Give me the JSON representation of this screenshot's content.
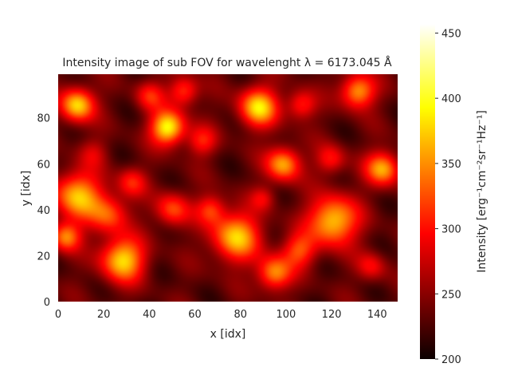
{
  "chart_data": {
    "type": "heatmap",
    "title": "Intensity image of sub FOV for wavelenght λ = 6173.045 Å",
    "xlabel": "x [idx]",
    "ylabel": "y [idx]",
    "xlim": [
      0,
      149
    ],
    "ylim": [
      0,
      99
    ],
    "x_ticks": [
      "0",
      "20",
      "40",
      "60",
      "80",
      "100",
      "120",
      "140"
    ],
    "x_tick_values": [
      0,
      20,
      40,
      60,
      80,
      100,
      120,
      140
    ],
    "y_ticks": [
      "0",
      "20",
      "40",
      "60",
      "80"
    ],
    "y_tick_values": [
      0,
      20,
      40,
      60,
      80
    ],
    "colorbar": {
      "label": "Intensity [erg⁻¹cm⁻²sr⁻¹Hz⁻¹]",
      "colormap": "hot",
      "range": [
        200,
        457
      ],
      "ticks": [
        "200",
        "250",
        "300",
        "350",
        "400",
        "450"
      ],
      "tick_values": [
        200,
        250,
        300,
        350,
        400,
        450
      ]
    },
    "grid": false,
    "blobs": [
      {
        "x": 8,
        "y": 86,
        "r": 7,
        "v": 410
      },
      {
        "x": 8,
        "y": 46,
        "r": 10,
        "v": 395
      },
      {
        "x": 3,
        "y": 28,
        "r": 6,
        "v": 370
      },
      {
        "x": 22,
        "y": 38,
        "r": 8,
        "v": 350
      },
      {
        "x": 28,
        "y": 18,
        "r": 9,
        "v": 410
      },
      {
        "x": 32,
        "y": 52,
        "r": 6,
        "v": 330
      },
      {
        "x": 48,
        "y": 76,
        "r": 7,
        "v": 430
      },
      {
        "x": 55,
        "y": 92,
        "r": 6,
        "v": 350
      },
      {
        "x": 40,
        "y": 90,
        "r": 6,
        "v": 330
      },
      {
        "x": 50,
        "y": 40,
        "r": 7,
        "v": 350
      },
      {
        "x": 63,
        "y": 70,
        "r": 6,
        "v": 330
      },
      {
        "x": 78,
        "y": 28,
        "r": 10,
        "v": 400
      },
      {
        "x": 67,
        "y": 40,
        "r": 6,
        "v": 340
      },
      {
        "x": 88,
        "y": 85,
        "r": 8,
        "v": 410
      },
      {
        "x": 99,
        "y": 60,
        "r": 7,
        "v": 390
      },
      {
        "x": 95,
        "y": 12,
        "r": 7,
        "v": 380
      },
      {
        "x": 107,
        "y": 86,
        "r": 6,
        "v": 340
      },
      {
        "x": 106,
        "y": 22,
        "r": 7,
        "v": 350
      },
      {
        "x": 121,
        "y": 35,
        "r": 10,
        "v": 410
      },
      {
        "x": 132,
        "y": 92,
        "r": 7,
        "v": 390
      },
      {
        "x": 143,
        "y": 58,
        "r": 7,
        "v": 390
      },
      {
        "x": 120,
        "y": 62,
        "r": 6,
        "v": 330
      },
      {
        "x": 138,
        "y": 15,
        "r": 6,
        "v": 320
      },
      {
        "x": 90,
        "y": 45,
        "r": 5,
        "v": 310
      },
      {
        "x": 15,
        "y": 65,
        "r": 6,
        "v": 300
      }
    ],
    "background_level": 260
  }
}
